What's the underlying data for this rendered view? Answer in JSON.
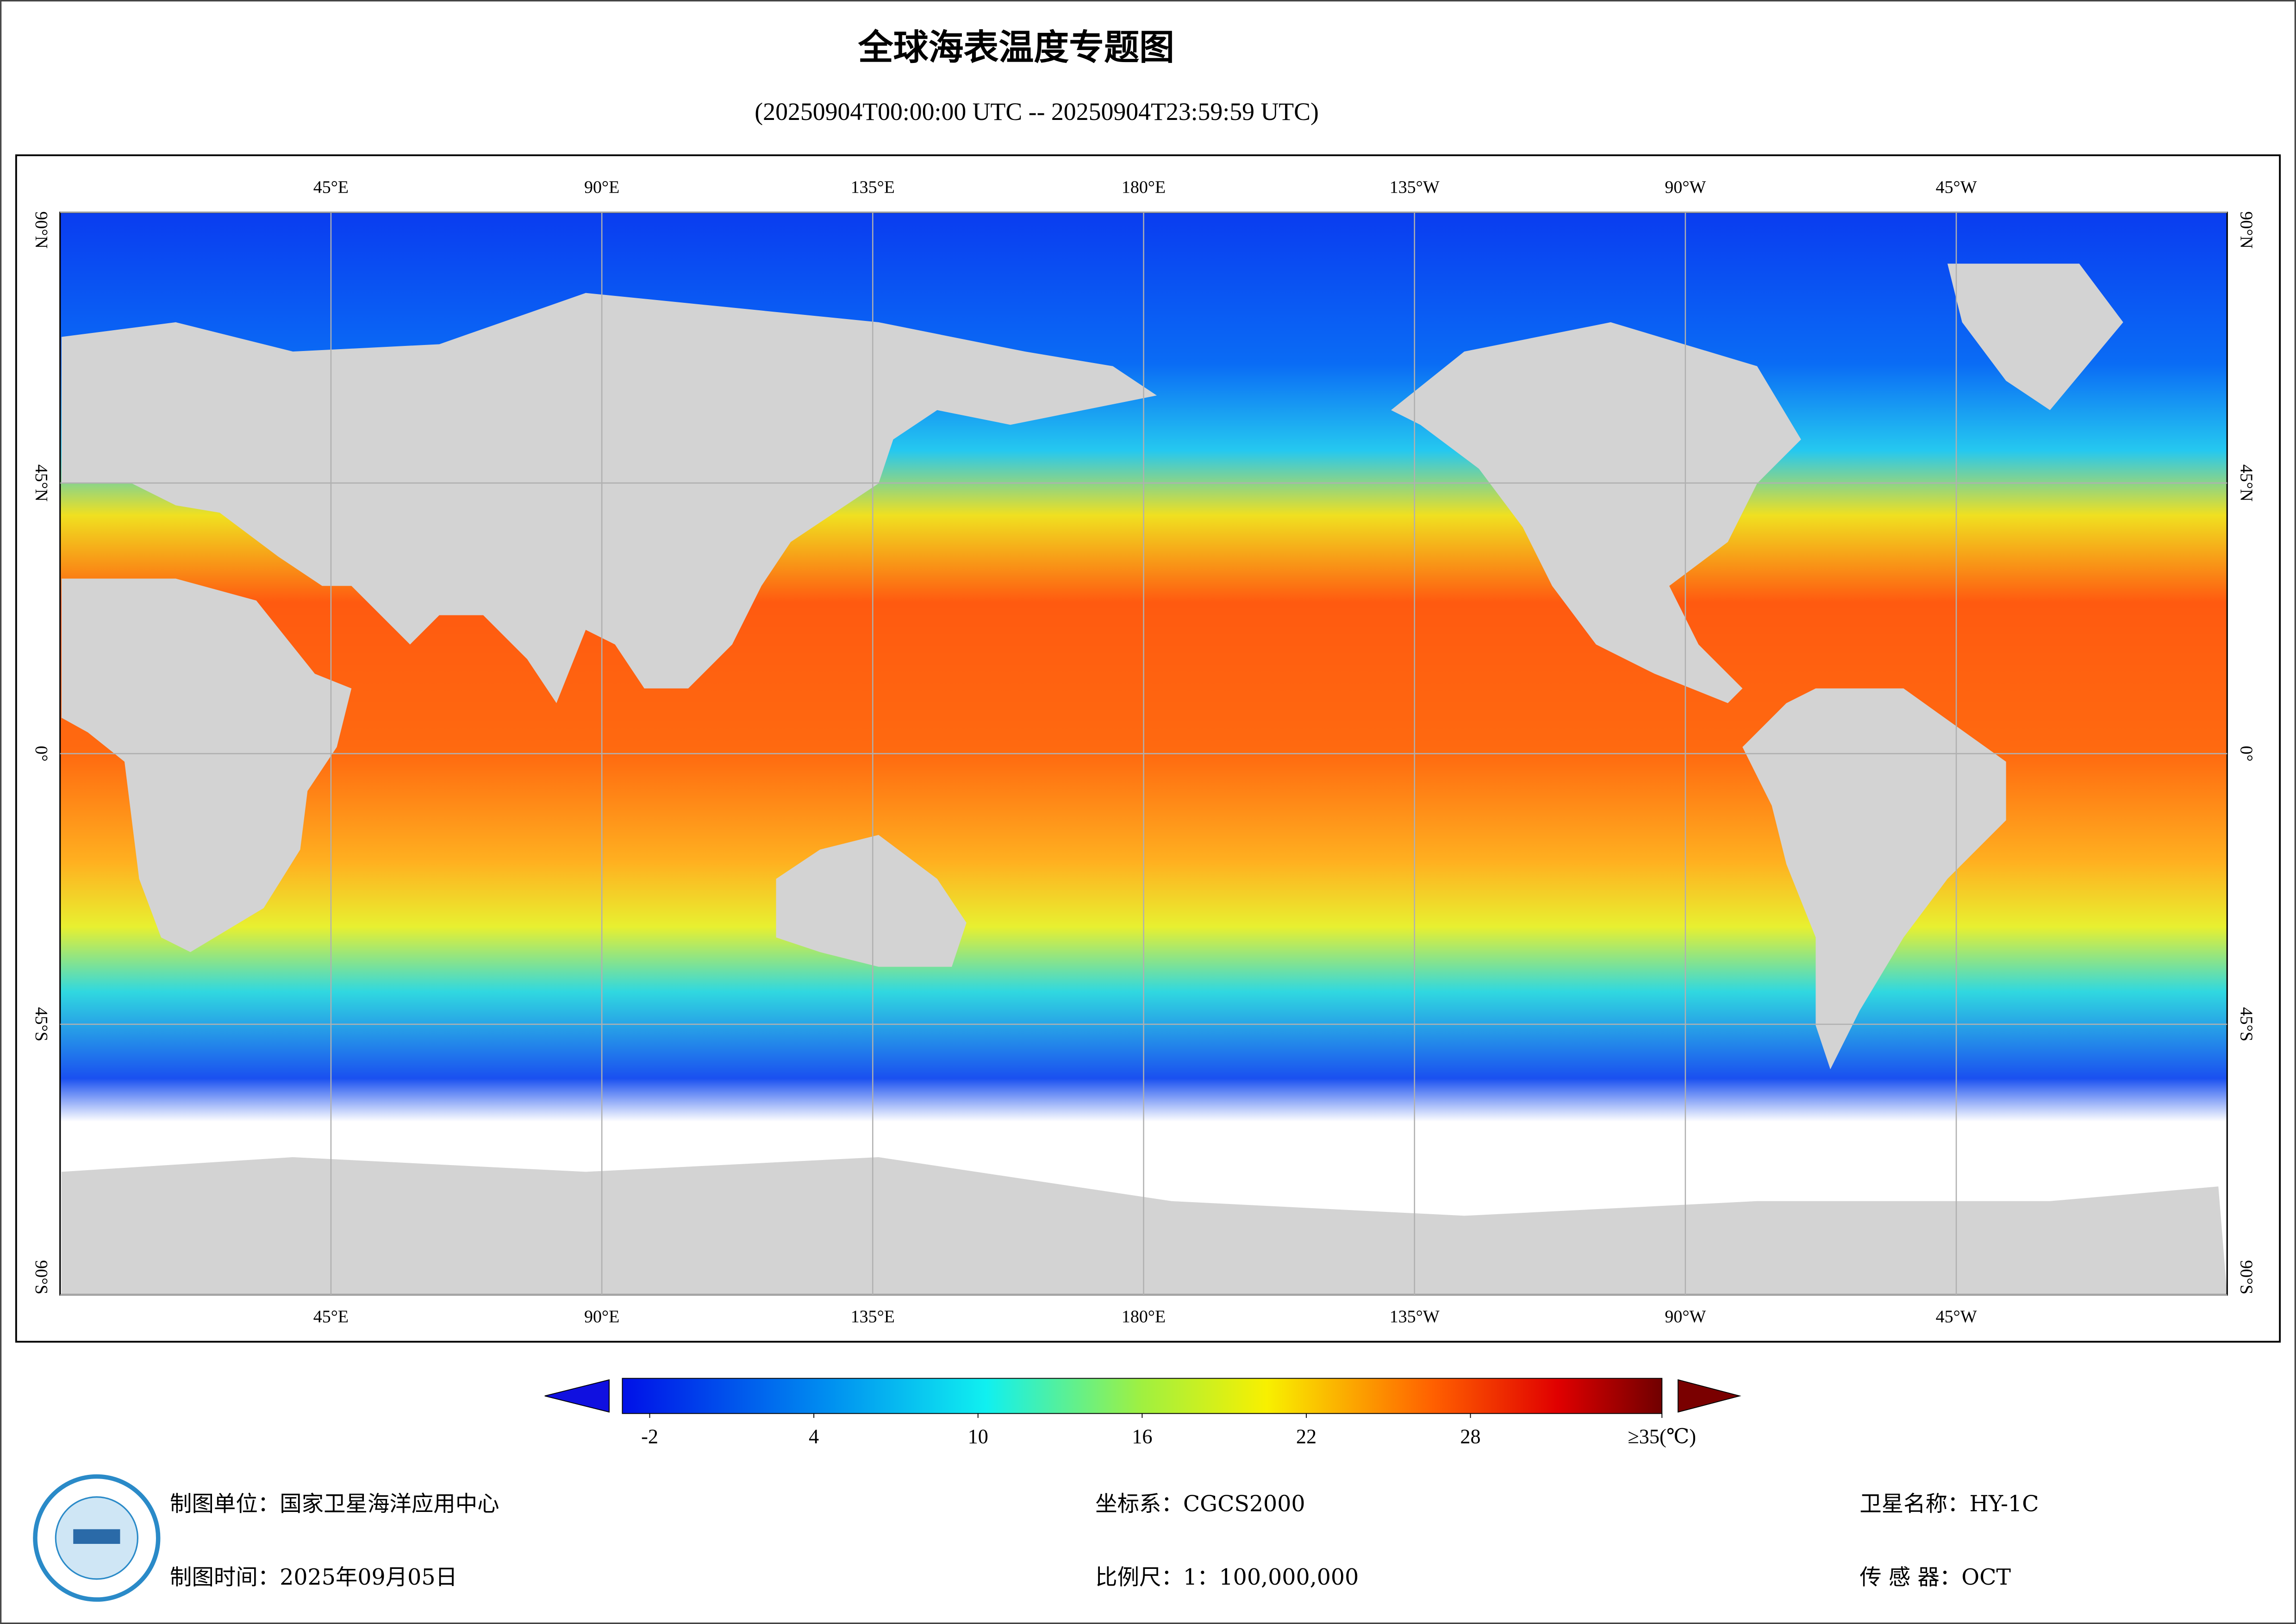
{
  "title": "全球海表温度专题图",
  "subtitle": "(20250904T00:00:00 UTC -- 20250904T23:59:59 UTC)",
  "map": {
    "lonlim": [
      0,
      360
    ],
    "latlim": [
      -90,
      90
    ],
    "lon_ticks": [
      {
        "value": 45,
        "label": "45°E"
      },
      {
        "value": 90,
        "label": "90°E"
      },
      {
        "value": 135,
        "label": "135°E"
      },
      {
        "value": 180,
        "label": "180°E"
      },
      {
        "value": 225,
        "label": "135°W"
      },
      {
        "value": 270,
        "label": "90°W"
      },
      {
        "value": 315,
        "label": "45°W"
      }
    ],
    "lat_ticks": [
      {
        "value": 90,
        "label": "90°N"
      },
      {
        "value": 45,
        "label": "45°N"
      },
      {
        "value": 0,
        "label": "0°"
      },
      {
        "value": -45,
        "label": "45°S"
      },
      {
        "value": -90,
        "label": "90°S"
      }
    ],
    "grid": true
  },
  "colorbar": {
    "lim": [
      -3,
      35
    ],
    "ticks": [
      -2,
      4,
      10,
      16,
      22,
      28,
      {
        "value": 35,
        "label": "≥35(℃)"
      }
    ]
  },
  "footer": {
    "unit": "制图单位：国家卫星海洋应用中心",
    "date": "制图时间：2025年09月05日",
    "crs": "坐标系：CGCS2000",
    "scale": "比例尺：1：100,000,000",
    "satellite": "卫星名称：HY-1C",
    "sensor": "传 感 器：OCT"
  }
}
